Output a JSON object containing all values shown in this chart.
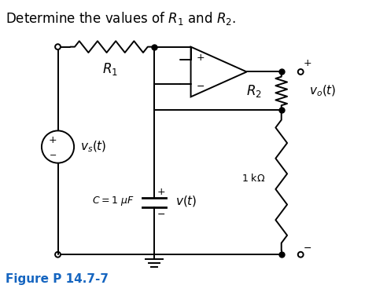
{
  "title": "Determine the values of $R_1$ and $R_2$.",
  "figure_label": "Figure P 14.7-7",
  "figure_label_color": "#1565C0",
  "background_color": "#ffffff",
  "line_color": "#000000",
  "title_fontsize": 12,
  "label_fontsize": 11,
  "figsize": [
    4.92,
    3.77
  ],
  "dpi": 100
}
